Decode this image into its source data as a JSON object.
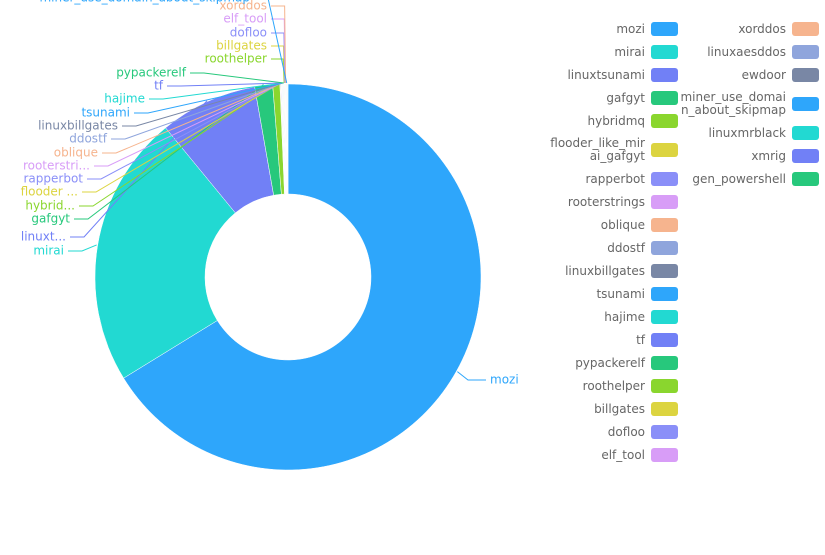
{
  "chart_data": {
    "type": "pie",
    "categories": [
      "mozi",
      "mirai",
      "linuxtsunami",
      "gafgyt",
      "hybridmq",
      "flooder_like_mirai_gafgyt",
      "rapperbot",
      "rooterstrings",
      "oblique",
      "ddostf",
      "linuxbillgates",
      "tsunami",
      "hajime",
      "tf",
      "pypackerelf",
      "roothelper",
      "billgates",
      "dofloo",
      "elf_tool",
      "xorddos",
      "linuxaesddos",
      "ewdoor",
      "miner_use_domain_about_skipmap",
      "linuxmrblack",
      "xmrig",
      "gen_powershell"
    ],
    "values": [
      664,
      229,
      82,
      15,
      6,
      0.5,
      0.5,
      0.3,
      0.3,
      0.3,
      0.3,
      0.3,
      0.3,
      0.3,
      0.3,
      0.3,
      0.3,
      0.3,
      0.3,
      0.3,
      0.3,
      0.3,
      0.3,
      0.3,
      0.3,
      0.3
    ],
    "labels": [
      "mozi",
      "mirai",
      "linuxt...",
      "gafgyt",
      "hybrid...",
      "flooder ...",
      "rapperbot",
      "rooterstri...",
      "oblique",
      "ddostf",
      "linuxbillgates",
      "tsunami",
      "hajime",
      "tf",
      "pypackerelf",
      "roothelper",
      "billgates",
      "dofloo",
      "elf_tool",
      "xorddos",
      null,
      null,
      "miner_use_domain_about_skipmap",
      null,
      null,
      null
    ],
    "colors": [
      "#2ea6fb",
      "#22d9d2",
      "#7180f6",
      "#27c87c",
      "#8ad62e",
      "#dcd440",
      "#8a8ff8",
      "#d89df7",
      "#f6b48e",
      "#8fa5dc",
      "#7987a5",
      "#2ea6fb",
      "#22d9d2",
      "#7180f6",
      "#27c87c",
      "#8ad62e",
      "#dcd440",
      "#8a8ff8",
      "#d89df7",
      "#f6b48e",
      "#8fa5dc",
      "#7987a5",
      "#2ea6fb",
      "#22d9d2",
      "#7180f6",
      "#27c87c"
    ]
  }
}
